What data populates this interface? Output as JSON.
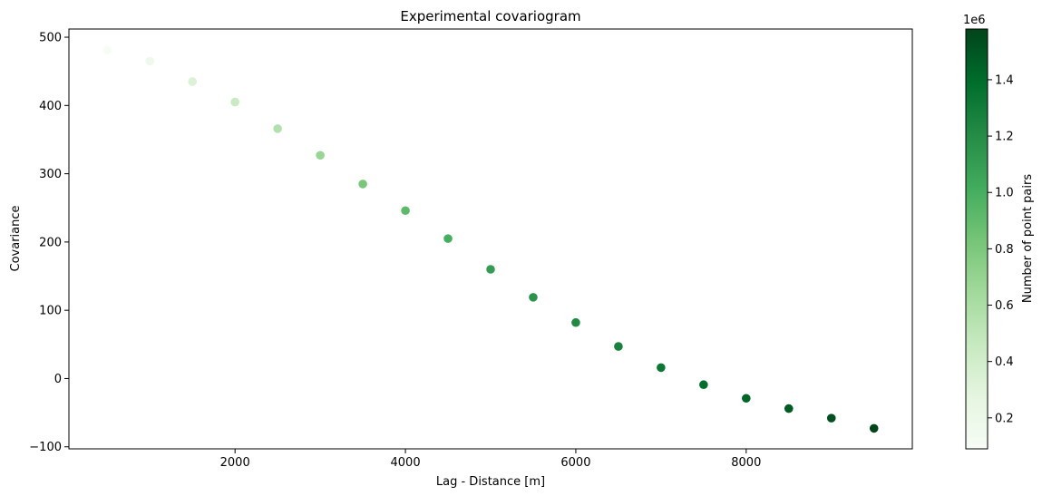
{
  "chart_data": {
    "type": "scatter",
    "title": "Experimental covariogram",
    "xlabel": "Lag - Distance [m]",
    "ylabel": "Covariance",
    "xlim": [
      50,
      9950
    ],
    "ylim": [
      -103,
      512
    ],
    "xticks": [
      2000,
      4000,
      6000,
      8000
    ],
    "yticks": [
      -100,
      0,
      100,
      200,
      300,
      400,
      500
    ],
    "grid": false,
    "points": [
      {
        "x": 500,
        "y": 481,
        "n": 90000
      },
      {
        "x": 1000,
        "y": 465,
        "n": 180000
      },
      {
        "x": 1500,
        "y": 435,
        "n": 330000
      },
      {
        "x": 2000,
        "y": 405,
        "n": 450000
      },
      {
        "x": 2500,
        "y": 366,
        "n": 560000
      },
      {
        "x": 3000,
        "y": 327,
        "n": 680000
      },
      {
        "x": 3500,
        "y": 285,
        "n": 810000
      },
      {
        "x": 4000,
        "y": 246,
        "n": 920000
      },
      {
        "x": 4500,
        "y": 205,
        "n": 1000000
      },
      {
        "x": 5000,
        "y": 160,
        "n": 1100000
      },
      {
        "x": 5500,
        "y": 119,
        "n": 1160000
      },
      {
        "x": 6000,
        "y": 82,
        "n": 1220000
      },
      {
        "x": 6500,
        "y": 47,
        "n": 1270000
      },
      {
        "x": 7000,
        "y": 16,
        "n": 1330000
      },
      {
        "x": 7500,
        "y": -9,
        "n": 1380000
      },
      {
        "x": 8000,
        "y": -29,
        "n": 1430000
      },
      {
        "x": 8500,
        "y": -44,
        "n": 1480000
      },
      {
        "x": 9000,
        "y": -58,
        "n": 1530000
      },
      {
        "x": 9500,
        "y": -73,
        "n": 1580000
      }
    ],
    "colorbar": {
      "label": "Number of point pairs",
      "offset_text": "1e6",
      "min": 90000,
      "max": 1580000,
      "ticks": [
        200000,
        400000,
        600000,
        800000,
        1000000,
        1200000,
        1400000
      ],
      "tick_labels": [
        "0.2",
        "0.4",
        "0.6",
        "0.8",
        "1.0",
        "1.2",
        "1.4"
      ],
      "colormap": [
        "#f7fcf5",
        "#e5f5e0",
        "#c7e9c0",
        "#a1d99b",
        "#74c476",
        "#41ab5d",
        "#238b45",
        "#006d2c",
        "#00441b"
      ]
    }
  }
}
